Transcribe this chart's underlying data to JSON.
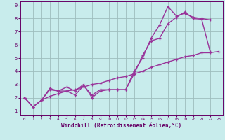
{
  "xlabel": "Windchill (Refroidissement éolien,°C)",
  "xlim": [
    -0.5,
    23.5
  ],
  "ylim": [
    0.7,
    9.3
  ],
  "xticks": [
    0,
    1,
    2,
    3,
    4,
    5,
    6,
    7,
    8,
    9,
    10,
    11,
    12,
    13,
    14,
    15,
    16,
    17,
    18,
    19,
    20,
    21,
    22,
    23
  ],
  "yticks": [
    1,
    2,
    3,
    4,
    5,
    6,
    7,
    8,
    9
  ],
  "bg_color": "#c8ecec",
  "plot_bg": "#c8ecec",
  "line_color": "#993399",
  "grid_color": "#9dbdbd",
  "line1_x": [
    0,
    1,
    2,
    3,
    4,
    5,
    6,
    7,
    8,
    9,
    10,
    11,
    12,
    13,
    14,
    15,
    16,
    17,
    18,
    19,
    20,
    21,
    22
  ],
  "line1_y": [
    2.0,
    1.3,
    1.8,
    2.7,
    2.5,
    2.8,
    2.5,
    3.0,
    2.0,
    2.5,
    2.6,
    2.6,
    2.6,
    4.0,
    5.0,
    6.5,
    7.5,
    8.9,
    8.2,
    8.4,
    8.1,
    8.0,
    7.9
  ],
  "line2_x": [
    0,
    1,
    2,
    3,
    4,
    5,
    6,
    7,
    8,
    9,
    10,
    11,
    12,
    13,
    14,
    15,
    16,
    17,
    18,
    19,
    20,
    21,
    22,
    23
  ],
  "line2_y": [
    2.0,
    1.3,
    1.8,
    2.6,
    2.5,
    2.5,
    2.2,
    2.9,
    2.2,
    2.6,
    2.6,
    2.6,
    2.6,
    3.8,
    5.2,
    6.3,
    6.5,
    7.6,
    8.1,
    8.5,
    8.0,
    7.95,
    5.5,
    null
  ],
  "line3_x": [
    0,
    1,
    2,
    3,
    4,
    5,
    6,
    7,
    8,
    9,
    10,
    11,
    12,
    13,
    14,
    15,
    16,
    17,
    18,
    19,
    20,
    21,
    22,
    23
  ],
  "line3_y": [
    2.0,
    1.3,
    1.8,
    2.1,
    2.3,
    2.5,
    2.6,
    2.8,
    3.0,
    3.1,
    3.3,
    3.5,
    3.6,
    3.8,
    4.0,
    4.3,
    4.5,
    4.7,
    4.9,
    5.1,
    5.2,
    5.4,
    5.4,
    5.5
  ]
}
